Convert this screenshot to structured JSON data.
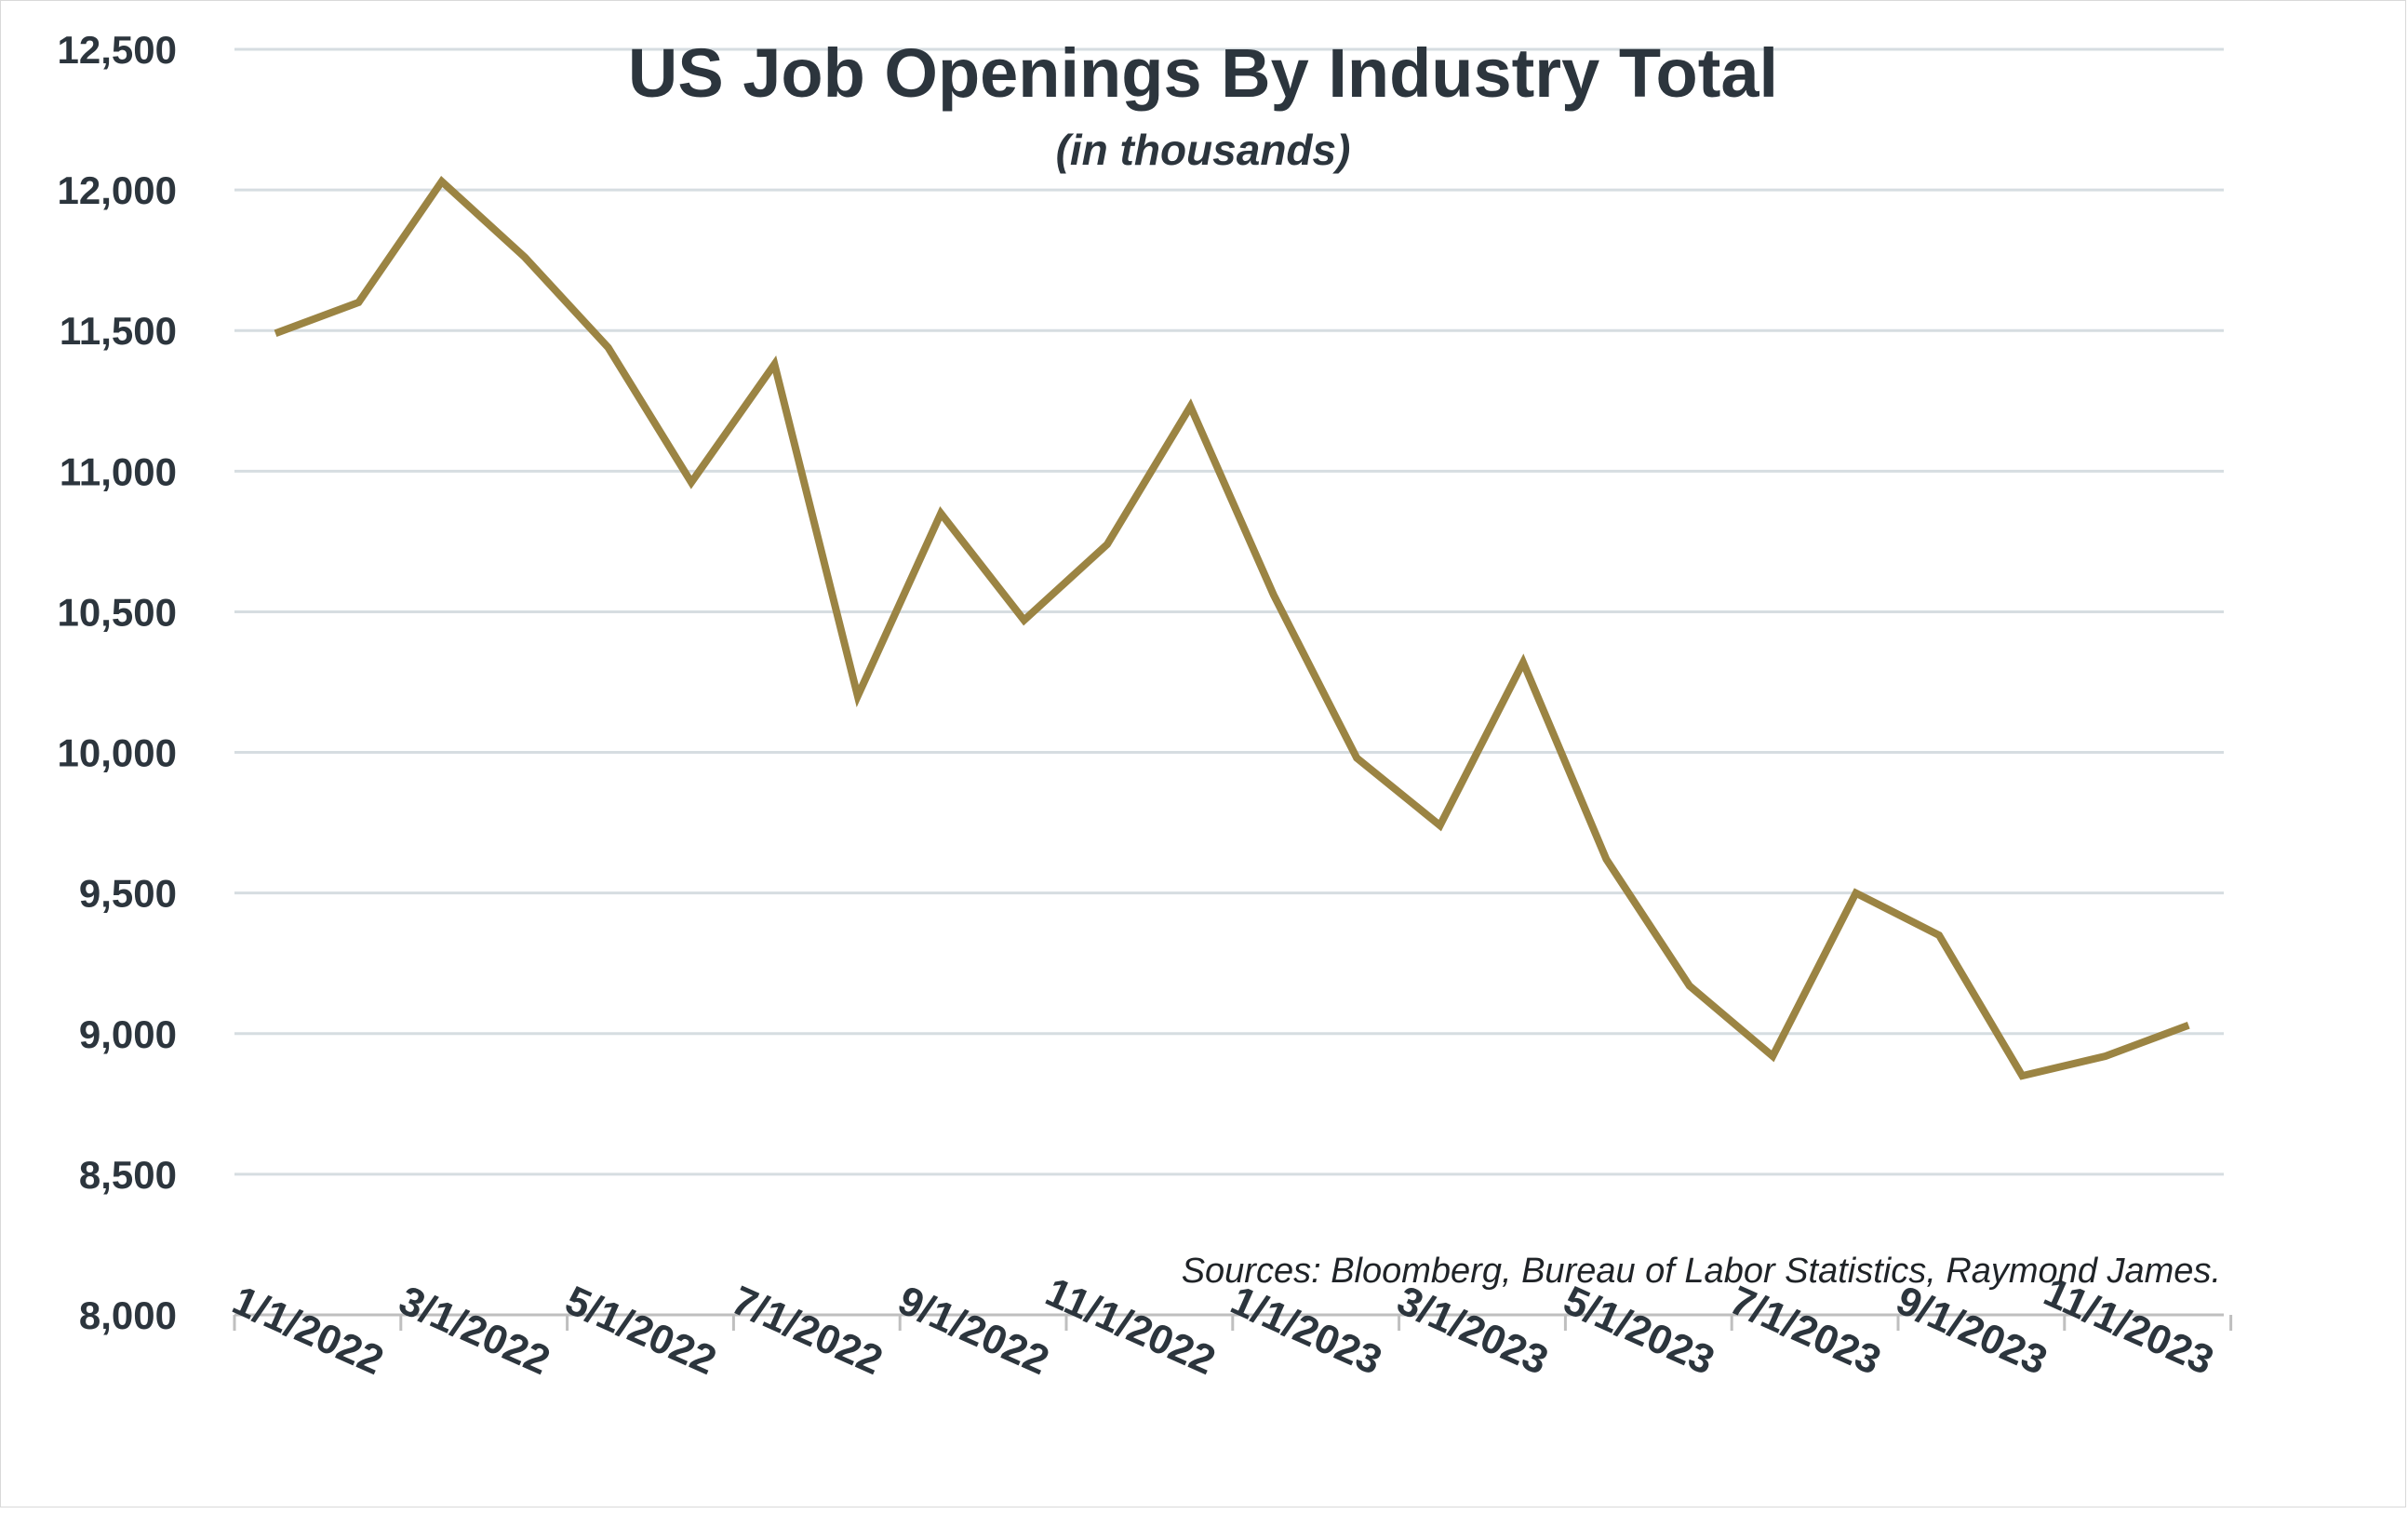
{
  "chart_data": {
    "type": "line",
    "title": "US Job Openings By Industry Total",
    "subtitle": "(in thousands)",
    "source": "Sources: Bloomberg, Bureau of Labor Statistics, Raymond James.",
    "ylim": [
      8000,
      12500
    ],
    "yticks": [
      "8,000",
      "8,500",
      "9,000",
      "9,500",
      "10,000",
      "10,500",
      "11,000",
      "11,500",
      "12,000",
      "12,500"
    ],
    "ytick_values": [
      8000,
      8500,
      9000,
      9500,
      10000,
      10500,
      11000,
      11500,
      12000,
      12500
    ],
    "xtick_labels": [
      "1/1/2022",
      "3/1/2022",
      "5/1/2022",
      "7/1/2022",
      "9/1/2022",
      "11/1/2022",
      "1/1/2023",
      "3/1/2023",
      "5/1/2023",
      "7/1/2023",
      "9/1/2023",
      "11/1/2023"
    ],
    "grid": true,
    "colors": {
      "line": "#9b8443",
      "grid": "#d6dde1",
      "axis": "#bfbfbf",
      "text": "#2c353d"
    },
    "x": [
      "12/1/2021",
      "1/1/2022",
      "2/1/2022",
      "3/1/2022",
      "4/1/2022",
      "5/1/2022",
      "6/1/2022",
      "7/1/2022",
      "8/1/2022",
      "9/1/2022",
      "10/1/2022",
      "11/1/2022",
      "12/1/2022",
      "1/1/2023",
      "2/1/2023",
      "3/1/2023",
      "4/1/2023",
      "5/1/2023",
      "6/1/2023",
      "7/1/2023",
      "8/1/2023",
      "9/1/2023",
      "10/1/2023",
      "11/1/2023"
    ],
    "series": [
      {
        "values": [
          11490,
          11600,
          12030,
          11760,
          11440,
          10960,
          11380,
          10200,
          10850,
          10470,
          10740,
          11230,
          10560,
          9980,
          9740,
          10320,
          9620,
          9170,
          8920,
          9500,
          9350,
          8850,
          8920,
          9030
        ]
      }
    ]
  }
}
